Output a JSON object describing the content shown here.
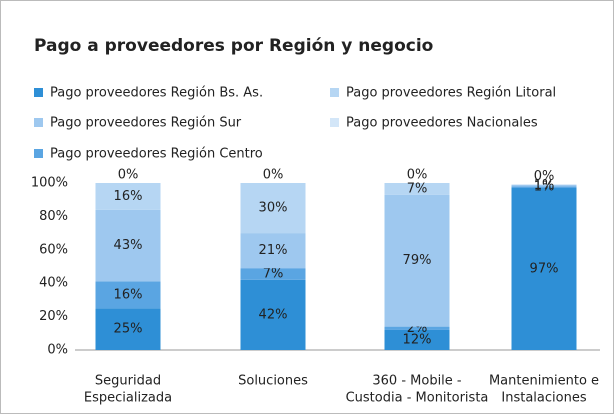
{
  "chart_data": {
    "type": "stacked_bar",
    "title": "Pago a proveedores por Región y negocio",
    "categories": [
      [
        "Seguridad",
        "Especializada"
      ],
      [
        "Soluciones"
      ],
      [
        "360 - Mobile -",
        "Custodia - Monitorista"
      ],
      [
        "Mantenimiento e",
        "Instalaciones"
      ]
    ],
    "series": [
      {
        "name": "Pago proveedores Región Bs. As.",
        "color": "#2e8fd6",
        "values": [
          25,
          42,
          12,
          97
        ],
        "value_labels": [
          "25%",
          "42%",
          "12%",
          "97%"
        ]
      },
      {
        "name": "Pago proveedores Región Centro",
        "color": "#5aa5e2",
        "values": [
          16,
          7,
          2,
          1
        ],
        "value_labels": [
          "16%",
          "7%",
          "2%",
          "1%"
        ]
      },
      {
        "name": "Pago proveedores Región Sur",
        "color": "#9ec8ef",
        "values": [
          43,
          21,
          79,
          1
        ],
        "value_labels": [
          "43%",
          "21%",
          "79%",
          "1%"
        ]
      },
      {
        "name": "Pago proveedores Región Litoral",
        "color": "#b6d6f3",
        "values": [
          16,
          30,
          7,
          null
        ],
        "value_labels": [
          "16%",
          "30%",
          "7%",
          null
        ]
      },
      {
        "name": "Pago proveedores Nacionales",
        "color": "#d3e6f8",
        "values": [
          0,
          0,
          0,
          0
        ],
        "value_labels": [
          "0%",
          "0%",
          "0%",
          "0%"
        ]
      }
    ],
    "ylim": [
      0,
      100
    ],
    "yticks": [
      {
        "value": 0,
        "label": "0%"
      },
      {
        "value": 20,
        "label": "20%"
      },
      {
        "value": 40,
        "label": "40%"
      },
      {
        "value": 60,
        "label": "60%"
      },
      {
        "value": 80,
        "label": "80%"
      },
      {
        "value": 100,
        "label": "100%"
      }
    ]
  }
}
